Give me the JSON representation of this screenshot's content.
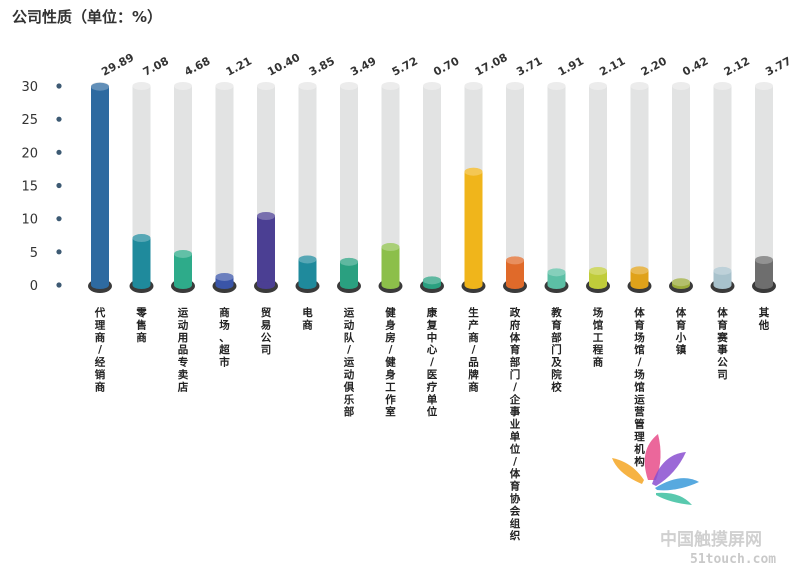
{
  "chart_data": {
    "type": "bar",
    "title": "公司性质（单位：%）",
    "ylim": [
      0,
      30
    ],
    "yticks": [
      0,
      5,
      10,
      15,
      20,
      25,
      30
    ],
    "grid": false,
    "legend": "none",
    "categories": [
      "代理商/经销商",
      "零售商",
      "运动用品专卖店",
      "商场、超市",
      "贸易公司",
      "电商",
      "运动队/运动俱乐部",
      "健身房/健身工作室",
      "康复中心/医疗单位",
      "生产商/品牌商",
      "政府体育部门/企事业单位/体育协会组织",
      "教育部门及院校",
      "场馆工程商",
      "体育场馆/场馆运营管理机构",
      "体育小镇",
      "体育赛事公司",
      "其他"
    ],
    "values": [
      29.89,
      7.08,
      4.68,
      1.21,
      10.4,
      3.85,
      3.49,
      5.72,
      0.7,
      17.08,
      3.71,
      1.91,
      2.11,
      2.2,
      0.42,
      2.12,
      3.77
    ],
    "value_labels": [
      "29.89",
      "7.08",
      "4.68",
      "1.21",
      "10.40",
      "3.85",
      "3.49",
      "5.72",
      "0.70",
      "17.08",
      "3.71",
      "1.91",
      "2.11",
      "2.20",
      "0.42",
      "2.12",
      "3.77"
    ],
    "colors": [
      "#2e6aa0",
      "#1f8a9c",
      "#2eab8a",
      "#3a55a8",
      "#4b3f93",
      "#1f8a9c",
      "#2aa080",
      "#8cbf4a",
      "#2aa080",
      "#f0b51b",
      "#e06a2a",
      "#5cbfa5",
      "#c0cc3a",
      "#e0a21a",
      "#9aaa3a",
      "#a8c2cc",
      "#6e6e6e"
    ]
  },
  "watermark": {
    "text": "中国触摸屏网",
    "url": "51touch.com"
  }
}
